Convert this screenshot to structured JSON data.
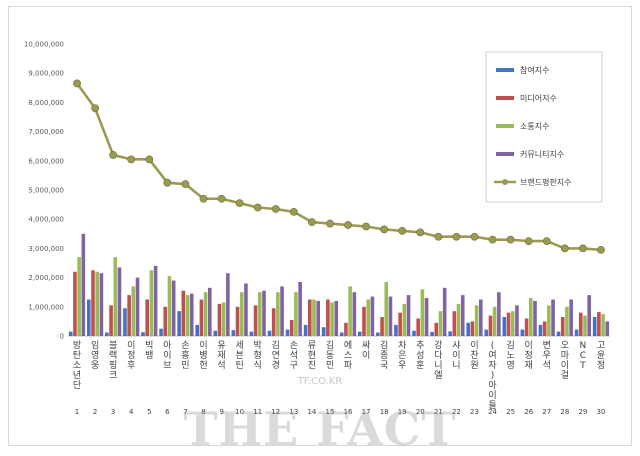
{
  "chart_data": {
    "type": "bar",
    "title": "",
    "xlabel": "",
    "ylabel": "",
    "ylim": [
      0,
      10000000
    ],
    "yticks": [
      "0",
      "1,000,000",
      "2,000,000",
      "3,000,000",
      "4,000,000",
      "5,000,000",
      "6,000,000",
      "7,000,000",
      "8,000,000",
      "9,000,000",
      "10,000,000"
    ],
    "grid": false,
    "legend": "right",
    "categories": [
      "방탄소년단",
      "임영웅",
      "블랙핑크",
      "이정후",
      "빅뱅",
      "아이브",
      "손흥민",
      "이병헌",
      "유재석",
      "세븐틴",
      "박형식",
      "김연경",
      "손석구",
      "류현진",
      "김동민",
      "에스파",
      "싸이",
      "김종국",
      "차은우",
      "추성훈",
      "강다니엘",
      "샤이니",
      "이찬원",
      "(여자)아이들",
      "김노영",
      "이정재",
      "변우석",
      "오마이걸",
      "NCT",
      "고윤정"
    ],
    "ranks": [
      "1",
      "2",
      "3",
      "4",
      "5",
      "6",
      "7",
      "8",
      "9",
      "10",
      "11",
      "12",
      "13",
      "14",
      "15",
      "16",
      "17",
      "18",
      "19",
      "20",
      "21",
      "22",
      "23",
      "24",
      "25",
      "26",
      "27",
      "28",
      "29",
      "30"
    ],
    "series": [
      {
        "name": "참여지수",
        "color": "#4472c4",
        "values": [
          150000,
          1250000,
          120000,
          950000,
          130000,
          250000,
          850000,
          380000,
          180000,
          200000,
          150000,
          180000,
          220000,
          380000,
          300000,
          120000,
          150000,
          120000,
          380000,
          180000,
          140000,
          160000,
          450000,
          220000,
          650000,
          220000,
          380000,
          150000,
          220000,
          650000
        ]
      },
      {
        "name": "미디어지수",
        "color": "#c0504d",
        "values": [
          2200000,
          2250000,
          1050000,
          1400000,
          1250000,
          1000000,
          1550000,
          1250000,
          1100000,
          1000000,
          1050000,
          950000,
          550000,
          1250000,
          1250000,
          450000,
          1000000,
          650000,
          800000,
          600000,
          450000,
          850000,
          500000,
          700000,
          800000,
          600000,
          500000,
          650000,
          800000,
          820000
        ]
      },
      {
        "name": "소통지수",
        "color": "#9bbb59",
        "values": [
          2700000,
          2200000,
          2700000,
          1700000,
          2250000,
          2050000,
          1400000,
          1500000,
          1150000,
          1500000,
          1500000,
          1500000,
          1500000,
          1250000,
          1150000,
          1700000,
          1250000,
          1850000,
          1100000,
          1600000,
          850000,
          1100000,
          1050000,
          1000000,
          850000,
          1300000,
          1050000,
          1000000,
          700000,
          750000
        ]
      },
      {
        "name": "커뮤니티지수",
        "color": "#8064a2",
        "values": [
          3500000,
          2150000,
          2350000,
          2000000,
          2400000,
          1900000,
          1450000,
          1650000,
          2150000,
          1800000,
          1550000,
          1700000,
          1850000,
          1200000,
          1200000,
          1500000,
          1350000,
          1350000,
          1400000,
          1300000,
          1650000,
          1400000,
          1250000,
          1500000,
          1050000,
          1200000,
          1250000,
          1250000,
          1400000,
          500000
        ]
      }
    ],
    "line": {
      "name": "브랜드평판지수",
      "color": "#9c9a52",
      "values": [
        8650000,
        7800000,
        6200000,
        6050000,
        6050000,
        5250000,
        5200000,
        4700000,
        4700000,
        4550000,
        4400000,
        4350000,
        4250000,
        3900000,
        3850000,
        3800000,
        3750000,
        3650000,
        3600000,
        3550000,
        3400000,
        3400000,
        3400000,
        3300000,
        3300000,
        3250000,
        3250000,
        3000000,
        3000000,
        2950000
      ]
    }
  },
  "watermark": {
    "brand": "THE FACT",
    "url": "TF.CO.KR"
  }
}
